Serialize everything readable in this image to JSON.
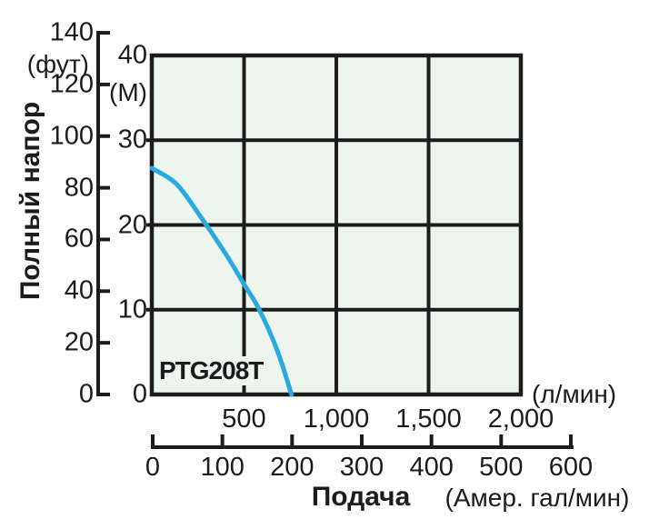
{
  "chart": {
    "model_label": "PTG208T",
    "y_title": "Полный напор",
    "x_title": "Подача"
  },
  "chart_data": {
    "type": "line",
    "title": "",
    "grid": true,
    "plot_bg_color": "#eef4ee",
    "line_color": "#1c1c1c",
    "series": [
      {
        "name": "PTG208T",
        "color": "#29abe2",
        "points_lpm_m": [
          [
            0,
            26.7
          ],
          [
            135,
            24.8
          ],
          [
            270,
            20.8
          ],
          [
            400,
            16.6
          ],
          [
            500,
            13.0
          ],
          [
            583,
            10.0
          ],
          [
            680,
            5.2
          ],
          [
            757,
            0
          ]
        ]
      }
    ],
    "y_axis_m": {
      "label": "Полный напор",
      "unit": "(М)",
      "ticks": [
        40,
        30,
        20,
        10,
        0
      ],
      "range": [
        0,
        40
      ]
    },
    "y_axis_ft": {
      "unit": "(фут)",
      "ticks": [
        140,
        120,
        100,
        80,
        60,
        40,
        20,
        0
      ],
      "range": [
        0,
        140
      ]
    },
    "x_axis_lpm": {
      "label": "Подача",
      "unit": "(л/мин)",
      "ticks": [
        500,
        1000,
        1500,
        2000
      ],
      "tick_labels": [
        "500",
        "1,000",
        "1,500",
        "2,000"
      ],
      "range": [
        0,
        2000
      ]
    },
    "x_axis_gpm": {
      "unit": "(Амер. гал/мин)",
      "ticks": [
        0,
        100,
        200,
        300,
        400,
        500,
        600
      ],
      "range": [
        0,
        600
      ]
    }
  }
}
